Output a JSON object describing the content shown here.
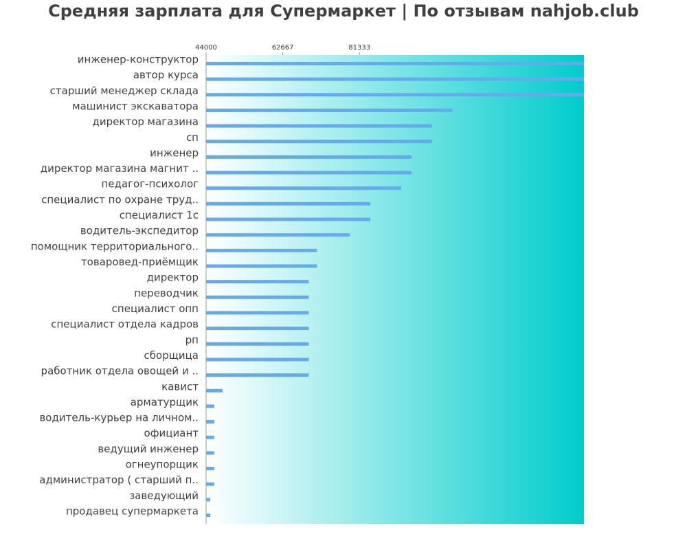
{
  "chart_data": {
    "type": "bar",
    "orientation": "horizontal",
    "title": "Средняя зарплата для Супермаркет | По отзывам nahjob.club",
    "xlabel": "",
    "ylabel": "",
    "xlim": [
      44000,
      136000
    ],
    "xticks": [
      44000,
      62667,
      81333
    ],
    "xtick_labels": [
      "44000",
      "62667",
      "81333"
    ],
    "grid": false,
    "background": "horizontal gradient from white to turquoise",
    "colors": {
      "bar": "#66aaee",
      "gradient_start": "#ffffff",
      "gradient_end": "#00cccc"
    },
    "categories": [
      "инженер-конструктор",
      "автор курса",
      "старший менеджер склада",
      "машинист экскаватора",
      "директор магазина",
      "сп",
      "инженер",
      "директор магазина магнит ..",
      "педагог-психолог",
      "специалист по охране труд..",
      "специалист 1с",
      "водитель-экспедитор",
      "помощник территориального..",
      "товаровед-приёмщик",
      "директор",
      "переводчик",
      "специалист опп",
      "специалист отдела кадров",
      "рп",
      "сборщица",
      "работник отдела овощей и ..",
      "кавист",
      "арматурщик",
      "водитель-курьер на личном..",
      "официант",
      "ведущий инженер",
      "огнеупорщик",
      "администратор ( старший п..",
      "заведующий",
      "продавец супермаркета"
    ],
    "values": [
      136000,
      136000,
      136000,
      104000,
      99000,
      99000,
      94000,
      94000,
      91500,
      84000,
      84000,
      79000,
      71000,
      71000,
      69000,
      69000,
      69000,
      69000,
      69000,
      69000,
      69000,
      48000,
      46000,
      46000,
      46000,
      46000,
      46000,
      46000,
      45000,
      45000
    ]
  }
}
